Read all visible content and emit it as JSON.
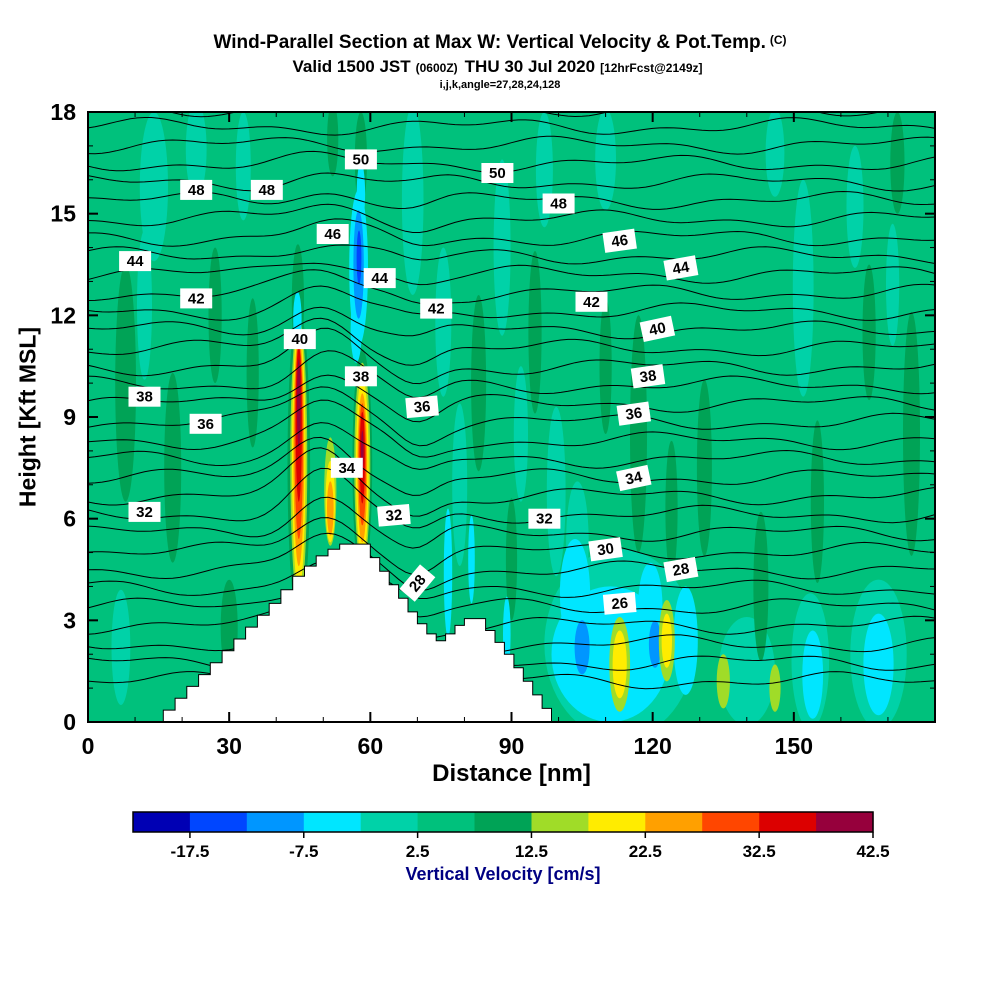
{
  "title": {
    "main": "Wind-Parallel Section at Max W: Vertical Velocity & Pot.Temp.",
    "main_suffix": "(C)",
    "valid_prefix": "Valid 1500 JST",
    "valid_small1": "(0600Z)",
    "valid_mid": "THU 30 Jul 2020",
    "valid_small2": "[12hrFcst@2149z]",
    "params": "i,j,k,angle=27,28,24,128"
  },
  "axes": {
    "x": {
      "label": "Distance [nm]",
      "min": 0,
      "max": 180,
      "major_ticks": [
        0,
        30,
        60,
        90,
        120,
        150
      ],
      "minor_step": 10
    },
    "y": {
      "label": "Height [Kft MSL]",
      "min": 0,
      "max": 18,
      "major_ticks": [
        0,
        3,
        6,
        9,
        12,
        15,
        18
      ],
      "minor_step": 1
    }
  },
  "colorbar": {
    "title": "Vertical Velocity [cm/s]",
    "title_color": "#000082",
    "level_min": -22.5,
    "level_step": 5,
    "labels": [
      "-17.5",
      "-7.5",
      "2.5",
      "12.5",
      "22.5",
      "32.5",
      "42.5"
    ]
  },
  "chart_data": {
    "type": "heatmap",
    "subtype": "filled-contour-cross-section",
    "field_name": "Vertical Velocity",
    "field_units": "cm/s",
    "overlay_name": "Potential Temperature",
    "overlay_units": "C",
    "x_range": [
      0,
      180
    ],
    "y_range": [
      0,
      18
    ],
    "levels": [
      -22.5,
      -17.5,
      -12.5,
      -7.5,
      -2.5,
      2.5,
      7.5,
      12.5,
      17.5,
      22.5,
      27.5,
      32.5,
      37.5,
      42.5
    ],
    "colors": [
      "#0000b4",
      "#0046ff",
      "#0096ff",
      "#00e6ff",
      "#00d2a8",
      "#00c17c",
      "#00a356",
      "#a0dc28",
      "#ffec00",
      "#ffa000",
      "#ff4600",
      "#dc0000",
      "#96003c"
    ],
    "background_band": 5,
    "terrain_profile": [
      [
        14,
        0
      ],
      [
        16,
        0.35
      ],
      [
        18.5,
        0.7
      ],
      [
        21,
        1.05
      ],
      [
        23.5,
        1.4
      ],
      [
        26,
        1.75
      ],
      [
        28.5,
        2.1
      ],
      [
        31,
        2.45
      ],
      [
        33.5,
        2.8
      ],
      [
        36,
        3.15
      ],
      [
        38.5,
        3.5
      ],
      [
        41,
        3.9
      ],
      [
        43.5,
        4.3
      ],
      [
        46,
        4.6
      ],
      [
        48.5,
        4.9
      ],
      [
        51,
        5.1
      ],
      [
        53.5,
        5.25
      ],
      [
        58,
        5.25
      ],
      [
        60,
        4.85
      ],
      [
        62,
        4.45
      ],
      [
        64,
        4.05
      ],
      [
        66,
        3.65
      ],
      [
        68,
        3.25
      ],
      [
        70,
        2.9
      ],
      [
        72,
        2.6
      ],
      [
        74,
        2.4
      ],
      [
        76,
        2.6
      ],
      [
        78,
        2.85
      ],
      [
        80,
        3.05
      ],
      [
        82.5,
        3.05
      ],
      [
        84.5,
        2.7
      ],
      [
        86.5,
        2.35
      ],
      [
        88.5,
        2
      ],
      [
        90.5,
        1.6
      ],
      [
        92.5,
        1.2
      ],
      [
        94.5,
        0.8
      ],
      [
        96.5,
        0.4
      ],
      [
        98.5,
        0
      ]
    ],
    "features": [
      [
        4,
        14,
        15.8,
        3,
        2.2
      ],
      [
        4,
        23,
        16.9,
        2.2,
        1.4
      ],
      [
        4,
        12,
        12.3,
        1.6,
        2.2
      ],
      [
        4,
        33,
        16.4,
        1.6,
        1.6
      ],
      [
        4,
        69,
        15.4,
        2.3,
        2.8
      ],
      [
        4,
        75.5,
        11.8,
        1.7,
        2.2
      ],
      [
        4,
        88,
        14,
        1.8,
        2.6
      ],
      [
        4,
        97,
        16.3,
        1.8,
        1.7
      ],
      [
        4,
        110,
        16.6,
        2.2,
        1.5
      ],
      [
        4,
        79,
        7,
        1.6,
        2.4
      ],
      [
        4,
        92,
        8.5,
        1.5,
        2
      ],
      [
        4,
        99.5,
        6.8,
        2,
        2.5
      ],
      [
        4,
        104,
        5.3,
        2.4,
        1.8
      ],
      [
        4,
        152,
        12.8,
        2.2,
        3.2
      ],
      [
        4,
        163,
        15.2,
        1.8,
        1.8
      ],
      [
        4,
        146,
        16.8,
        2,
        1.3
      ],
      [
        4,
        7,
        2.2,
        2,
        1.7
      ],
      [
        4,
        171,
        12.9,
        1.4,
        1.8
      ],
      [
        4,
        113,
        2.3,
        16,
        2.8
      ],
      [
        4,
        168,
        2,
        6,
        2.2
      ],
      [
        4,
        153.5,
        1.8,
        4,
        2
      ],
      [
        4,
        140,
        1.5,
        6,
        1.6
      ],
      [
        6,
        8,
        10,
        2.2,
        3.5
      ],
      [
        6,
        18,
        7.5,
        1.8,
        2.8
      ],
      [
        6,
        27,
        12,
        1.4,
        2
      ],
      [
        6,
        35,
        10.3,
        1.3,
        2.2
      ],
      [
        6,
        44.6,
        12.4,
        1.3,
        1.7
      ],
      [
        6,
        58,
        16.6,
        1.3,
        1.4
      ],
      [
        6,
        52,
        17.2,
        1.2,
        1.1
      ],
      [
        6,
        83,
        10,
        1.6,
        2.6
      ],
      [
        6,
        90,
        4.8,
        1.2,
        1.8
      ],
      [
        6,
        95,
        11.5,
        1.4,
        2.4
      ],
      [
        6,
        117,
        8.5,
        1.8,
        3.5
      ],
      [
        6,
        124,
        6.3,
        1.3,
        2
      ],
      [
        6,
        131,
        7.5,
        1.6,
        2.6
      ],
      [
        6,
        143,
        4,
        1.6,
        2.2
      ],
      [
        6,
        155,
        6.5,
        1.4,
        2.4
      ],
      [
        6,
        166,
        11.5,
        1.4,
        2
      ],
      [
        6,
        175,
        8.5,
        1.8,
        3.6
      ],
      [
        6,
        172,
        16.5,
        1.5,
        1.5
      ],
      [
        6,
        30,
        2.8,
        1.8,
        1.4
      ],
      [
        6,
        110,
        10.5,
        1.3,
        2
      ],
      [
        6,
        44.8,
        7.6,
        2.4,
        4.6
      ],
      [
        7,
        44.8,
        7.7,
        1.8,
        4.2
      ],
      [
        8,
        44.8,
        7.8,
        1.45,
        3.9
      ],
      [
        9,
        44.8,
        8,
        1.15,
        3.4
      ],
      [
        10,
        44.8,
        8.3,
        0.9,
        2.9
      ],
      [
        11,
        44.8,
        8.8,
        0.65,
        2.3
      ],
      [
        12,
        44.8,
        9.4,
        0.4,
        1.3
      ],
      [
        6,
        58.3,
        7.6,
        2.1,
        3.4
      ],
      [
        7,
        58.3,
        7.6,
        1.7,
        3
      ],
      [
        8,
        58.3,
        7.5,
        1.35,
        2.7
      ],
      [
        9,
        58.3,
        7.5,
        1.05,
        2.2
      ],
      [
        10,
        58.3,
        7.6,
        0.8,
        1.8
      ],
      [
        11,
        58.3,
        7.8,
        0.55,
        1.35
      ],
      [
        12,
        58.3,
        8,
        0.28,
        0.6
      ],
      [
        7,
        51.5,
        6.8,
        1.3,
        1.6
      ],
      [
        8,
        51.5,
        6.5,
        1,
        1.2
      ],
      [
        9,
        51.5,
        6.3,
        0.7,
        0.8
      ],
      [
        3,
        57.5,
        13.4,
        2,
        2.3
      ],
      [
        3,
        57,
        11.6,
        1.2,
        1
      ],
      [
        3,
        58,
        15.6,
        0.9,
        0.9
      ],
      [
        3,
        44.5,
        11.9,
        0.9,
        0.8
      ],
      [
        3,
        76.5,
        4.4,
        0.9,
        1.9
      ],
      [
        3,
        81.5,
        4.8,
        0.7,
        1.3
      ],
      [
        3,
        89,
        2.6,
        0.8,
        1.1
      ],
      [
        3,
        111,
        2,
        12.5,
        2
      ],
      [
        3,
        103.5,
        3.8,
        3.2,
        1.6
      ],
      [
        3,
        119.5,
        3.4,
        2.6,
        1.3
      ],
      [
        3,
        127,
        2.4,
        2.6,
        1.6
      ],
      [
        3,
        154,
        1.4,
        2.2,
        1.3
      ],
      [
        3,
        168,
        1.7,
        3.2,
        1.5
      ],
      [
        2,
        57.5,
        13.5,
        1.1,
        1.6
      ],
      [
        2,
        105,
        2.2,
        1.6,
        0.8
      ],
      [
        2,
        120.5,
        2.3,
        1.3,
        0.7
      ],
      [
        1,
        57.6,
        13.7,
        0.5,
        0.8
      ],
      [
        7,
        113,
        1.7,
        2.2,
        1.4
      ],
      [
        8,
        113,
        1.7,
        1.5,
        1
      ],
      [
        7,
        123,
        2.4,
        1.7,
        1.2
      ],
      [
        8,
        123,
        2.4,
        1.1,
        0.8
      ],
      [
        7,
        135,
        1.2,
        1.4,
        0.8
      ],
      [
        7,
        146,
        1,
        1.2,
        0.7
      ]
    ],
    "isentropes": {
      "theta_min": 22,
      "theta_max": 53,
      "theta_step": 1,
      "ref": 26,
      "base": 3.4,
      "slope": 0.545,
      "labels": [
        [
          "50",
          58,
          16.6,
          0
        ],
        [
          "50",
          87,
          16.2,
          0
        ],
        [
          "48",
          23,
          15.7,
          0
        ],
        [
          "48",
          38,
          15.7,
          0
        ],
        [
          "48",
          100,
          15.3,
          0
        ],
        [
          "46",
          52,
          14.4,
          0
        ],
        [
          "46",
          113,
          14.2,
          -8
        ],
        [
          "44",
          10,
          13.6,
          0
        ],
        [
          "44",
          62,
          13.1,
          0
        ],
        [
          "44",
          126,
          13.4,
          -10
        ],
        [
          "42",
          23,
          12.5,
          0
        ],
        [
          "42",
          74,
          12.2,
          0
        ],
        [
          "42",
          107,
          12.4,
          0
        ],
        [
          "40",
          45,
          11.3,
          0
        ],
        [
          "40",
          121,
          11.6,
          -12
        ],
        [
          "38",
          12,
          9.6,
          0
        ],
        [
          "38",
          58,
          10.2,
          0
        ],
        [
          "38",
          119,
          10.2,
          -8
        ],
        [
          "36",
          25,
          8.8,
          0
        ],
        [
          "36",
          71,
          9.3,
          -5
        ],
        [
          "36",
          116,
          9.1,
          -8
        ],
        [
          "34",
          55,
          7.5,
          0
        ],
        [
          "34",
          116,
          7.2,
          -12
        ],
        [
          "32",
          12,
          6.2,
          0
        ],
        [
          "32",
          65,
          6.1,
          -5
        ],
        [
          "32",
          97,
          6,
          0
        ],
        [
          "30",
          110,
          5.1,
          -8
        ],
        [
          "28",
          70,
          4.1,
          -50
        ],
        [
          "28",
          126,
          4.5,
          -10
        ],
        [
          "26",
          113,
          3.5,
          -5
        ]
      ]
    }
  }
}
